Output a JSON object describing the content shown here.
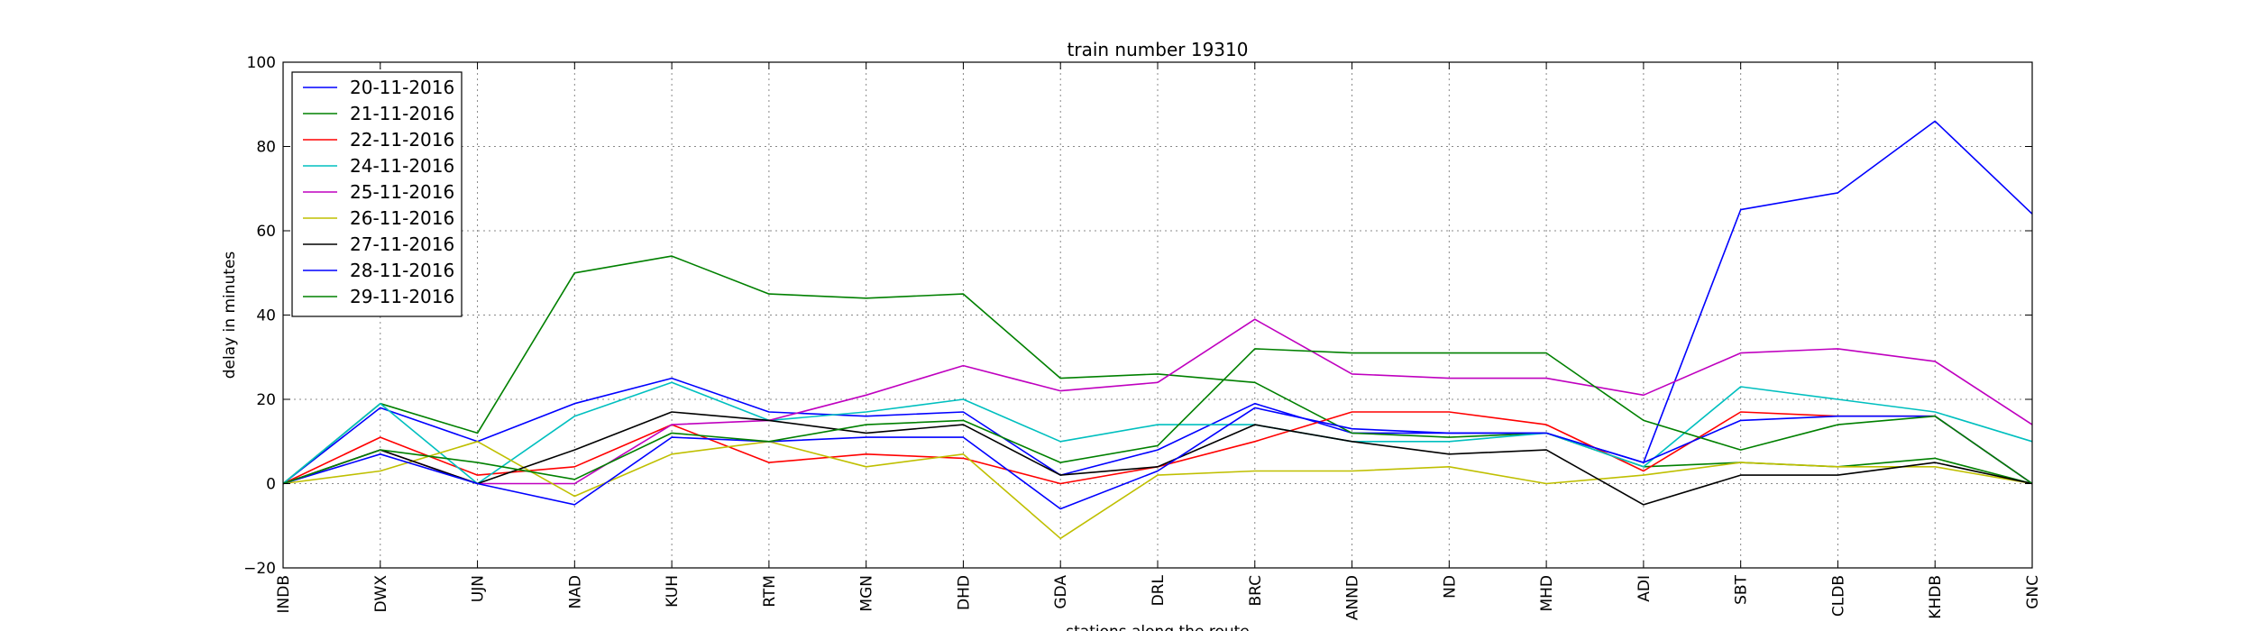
{
  "chart_data": {
    "type": "line",
    "title": "train number 19310",
    "xlabel": "stations along the route",
    "ylabel": "delay in minutes",
    "ylim": [
      -20,
      100
    ],
    "yticks": [
      -20,
      0,
      20,
      40,
      60,
      80,
      100
    ],
    "grid": true,
    "legend_position": "top-left",
    "categories": [
      "INDB",
      "DWX",
      "UJN",
      "NAD",
      "KUH",
      "RTM",
      "MGN",
      "DHD",
      "GDA",
      "DRL",
      "BRC",
      "ANND",
      "ND",
      "MHD",
      "ADI",
      "SBT",
      "CLDB",
      "KHDB",
      "GNC"
    ],
    "series": [
      {
        "name": "20-11-2016",
        "color": "#0000ff",
        "values": [
          0,
          18,
          10,
          19,
          25,
          17,
          16,
          17,
          2,
          8,
          19,
          12,
          12,
          12,
          5,
          65,
          69,
          86,
          64
        ]
      },
      {
        "name": "21-11-2016",
        "color": "#008000",
        "values": [
          0,
          19,
          12,
          50,
          54,
          45,
          44,
          45,
          25,
          26,
          24,
          12,
          11,
          12,
          4,
          5,
          4,
          6,
          0
        ]
      },
      {
        "name": "22-11-2016",
        "color": "#ff0000",
        "values": [
          0,
          11,
          2,
          4,
          14,
          5,
          7,
          6,
          0,
          4,
          10,
          17,
          17,
          14,
          3,
          17,
          16,
          16,
          0
        ]
      },
      {
        "name": "24-11-2016",
        "color": "#00bfbf",
        "values": [
          0,
          19,
          0,
          16,
          24,
          15,
          17,
          20,
          10,
          14,
          14,
          10,
          10,
          12,
          4,
          23,
          20,
          17,
          10
        ]
      },
      {
        "name": "25-11-2016",
        "color": "#bf00bf",
        "values": [
          0,
          8,
          0,
          0,
          14,
          15,
          21,
          28,
          22,
          24,
          39,
          26,
          25,
          25,
          21,
          31,
          32,
          29,
          14
        ]
      },
      {
        "name": "26-11-2016",
        "color": "#bfbf00",
        "values": [
          0,
          3,
          10,
          -3,
          7,
          10,
          4,
          7,
          -13,
          2,
          3,
          3,
          4,
          0,
          2,
          5,
          4,
          4,
          0
        ]
      },
      {
        "name": "27-11-2016",
        "color": "#000000",
        "values": [
          0,
          8,
          0,
          8,
          17,
          15,
          12,
          14,
          2,
          4,
          14,
          10,
          7,
          8,
          -5,
          2,
          2,
          5,
          0
        ]
      },
      {
        "name": "28-11-2016",
        "color": "#0000ff",
        "values": [
          0,
          7,
          0,
          -5,
          11,
          10,
          11,
          11,
          -6,
          3,
          18,
          13,
          12,
          12,
          5,
          15,
          16,
          16,
          0
        ]
      },
      {
        "name": "29-11-2016",
        "color": "#008000",
        "values": [
          0,
          8,
          5,
          1,
          12,
          10,
          14,
          15,
          5,
          9,
          32,
          31,
          31,
          31,
          15,
          8,
          14,
          16,
          0
        ]
      }
    ]
  }
}
